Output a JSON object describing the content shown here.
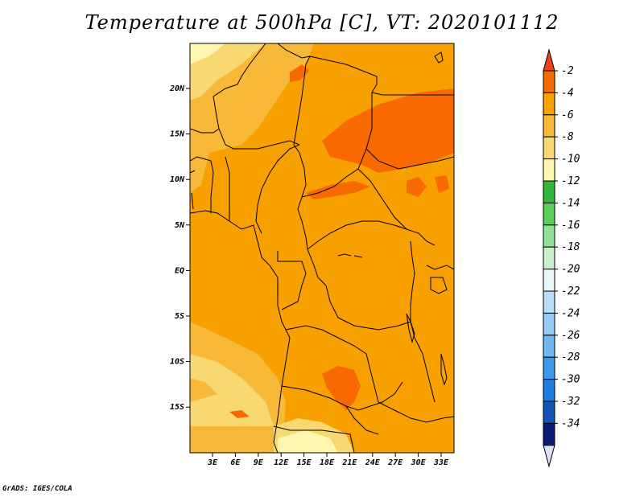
{
  "title": "Temperature at 500hPa [C], VT: 2020101112",
  "credit": "GrADS: IGES/COLA",
  "map": {
    "lat_ticks": [
      "20N",
      "15N",
      "10N",
      "5N",
      "EQ",
      "5S",
      "10S",
      "15S"
    ],
    "lon_ticks": [
      "3E",
      "6E",
      "9E",
      "12E",
      "15E",
      "18E",
      "21E",
      "24E",
      "27E",
      "30E",
      "33E"
    ]
  },
  "colorbar": {
    "labels": [
      "-2",
      "-4",
      "-6",
      "-8",
      "-10",
      "-12",
      "-14",
      "-16",
      "-18",
      "-20",
      "-22",
      "-24",
      "-26",
      "-28",
      "-30",
      "-32",
      "-34"
    ],
    "top_arrow_color": "#f04015",
    "bottom_arrow_color": "#dde0f8",
    "segment_colors": [
      "#f86a00",
      "#f8a000",
      "#f8b838",
      "#f8d870",
      "#fff7b0",
      "#30b838",
      "#5ad05a",
      "#94e098",
      "#c8f0c8",
      "#e8f8f8",
      "#b8def8",
      "#98ccf8",
      "#70b8f0",
      "#3c98e8",
      "#1e7ce0",
      "#1054b8",
      "#0c1a78"
    ]
  },
  "field_colors": {
    "t_-6_-4": "#f8a000",
    "t_-4_-2": "#f86a00",
    "t_-8_-6": "#f8b838",
    "t_-10_-8": "#f8d870",
    "t_-12_-10": "#fff7b0"
  }
}
